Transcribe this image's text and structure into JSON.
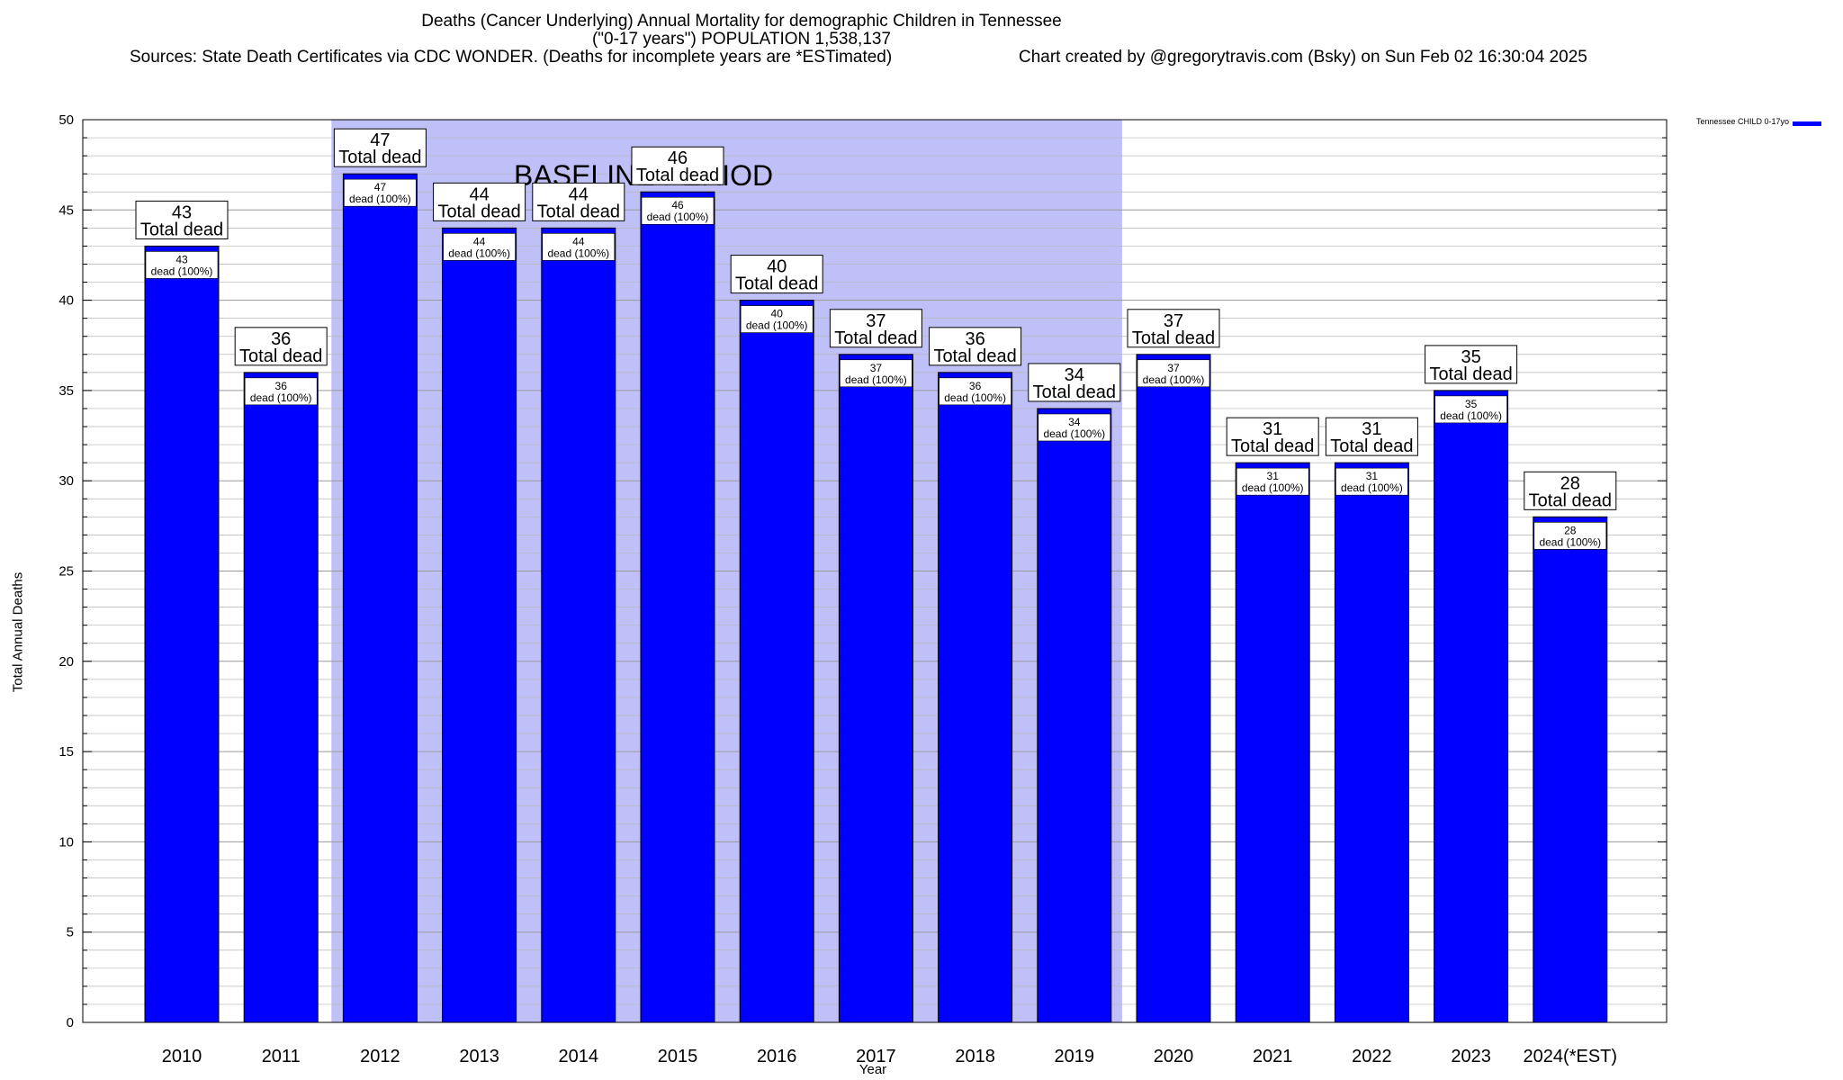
{
  "header": {
    "title": "Deaths (Cancer Underlying) Annual Mortality for demographic Children in Tennessee",
    "subtitle": "(\"0-17 years\") POPULATION 1,538,137",
    "sources": "Sources: State Death Certificates via CDC WONDER. (Deaths for incomplete years are *ESTimated)",
    "credit": "Chart created by @gregorytravis.com (Bsky) on Sun Feb 02 16:30:04 2025"
  },
  "colors": {
    "bar": "#0000ff",
    "baseline_band": "#c0c0f8",
    "grid": "#b8b8b8"
  },
  "chart_data": {
    "type": "bar",
    "title": "Deaths (Cancer Underlying) Annual Mortality for demographic Children in Tennessee",
    "xlabel": "Year",
    "ylabel": "Total Annual Deaths",
    "ylim": [
      0,
      50
    ],
    "yticks": [
      0,
      5,
      10,
      15,
      20,
      25,
      30,
      35,
      40,
      45,
      50
    ],
    "grid": true,
    "legend_position": "top-right",
    "categories": [
      "2010",
      "2011",
      "2012",
      "2013",
      "2014",
      "2015",
      "2016",
      "2017",
      "2018",
      "2019",
      "2020",
      "2021",
      "2022",
      "2023",
      "2024(*EST)"
    ],
    "series": [
      {
        "name": "Tennessee CHILD 0-17yo",
        "values": [
          43,
          36,
          47,
          44,
          44,
          46,
          40,
          37,
          36,
          34,
          37,
          31,
          31,
          35,
          28
        ]
      }
    ],
    "bar_label_caption": "Total dead",
    "inner_label_suffix": "dead (100%)",
    "annotation": {
      "text": "BASELINE PERIOD",
      "from_category": "2012",
      "to_category": "2019"
    }
  }
}
